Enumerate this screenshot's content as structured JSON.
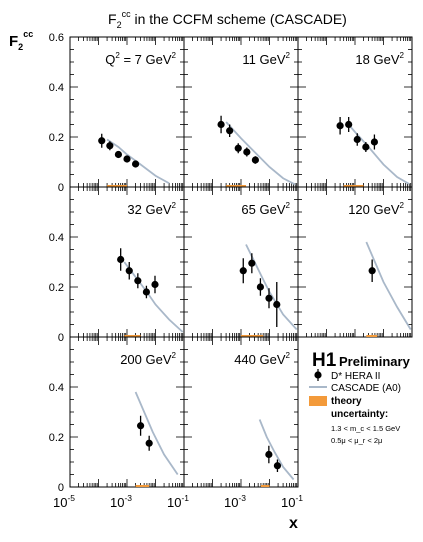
{
  "figure": {
    "title": "F2cc in the CCFM scheme (CASCADE)",
    "title_parts": {
      "symbol": "F",
      "sub": "2",
      "sup": "cc",
      "rest": " in the CCFM scheme (CASCADE)"
    },
    "ylabel_parts": {
      "symbol": "F",
      "sub": "2",
      "sup": "cc"
    },
    "xlabel": "x"
  },
  "legend": {
    "brand": "H1",
    "status": "Preliminary",
    "data_label": "D* HERA II",
    "model_label": "CASCADE (A0)",
    "band_label_1": "theory",
    "band_label_2": "uncertainty:",
    "note_1": "1.3 < m_c < 1.5 GeV",
    "note_2": "0.5μ < μ_r < 2μ",
    "colors": {
      "data": "#000000",
      "model": "#a9b8c9",
      "band": "#f39a3a"
    }
  },
  "chart_data": {
    "type": "scatter",
    "grid": false,
    "x_scale": "log",
    "xlim": [
      1e-05,
      0.1
    ],
    "ylim": [
      0,
      0.6
    ],
    "x_ticks": [
      "10^-5",
      "10^-3",
      "10^-1"
    ],
    "y_ticks": [
      "0",
      "0.2",
      "0.4",
      "0.6"
    ],
    "panels": [
      {
        "label": "Q^2 = 7 GeV^2",
        "points": [
          {
            "x": 0.00013,
            "y": 0.185,
            "err": 0.028
          },
          {
            "x": 0.00025,
            "y": 0.165,
            "err": 0.018
          },
          {
            "x": 0.0005,
            "y": 0.13,
            "err": 0.014
          },
          {
            "x": 0.001,
            "y": 0.112,
            "err": 0.012
          },
          {
            "x": 0.002,
            "y": 0.092,
            "err": 0.012
          }
        ],
        "model": [
          [
            0.0002,
            0.19
          ],
          [
            0.0005,
            0.16
          ],
          [
            0.001,
            0.13
          ],
          [
            0.003,
            0.09
          ],
          [
            0.01,
            0.045
          ],
          [
            0.03,
            0.015
          ]
        ],
        "band": [
          0.0002,
          0.001
        ]
      },
      {
        "label": "11 GeV^2",
        "points": [
          {
            "x": 0.0002,
            "y": 0.25,
            "err": 0.035
          },
          {
            "x": 0.0004,
            "y": 0.225,
            "err": 0.025
          },
          {
            "x": 0.0008,
            "y": 0.155,
            "err": 0.02
          },
          {
            "x": 0.0016,
            "y": 0.14,
            "err": 0.018
          },
          {
            "x": 0.0032,
            "y": 0.108,
            "err": 0.015
          }
        ],
        "model": [
          [
            0.0003,
            0.26
          ],
          [
            0.001,
            0.195
          ],
          [
            0.003,
            0.14
          ],
          [
            0.01,
            0.08
          ],
          [
            0.03,
            0.035
          ],
          [
            0.08,
            0.01
          ]
        ],
        "band": [
          0.0003,
          0.0015
        ]
      },
      {
        "label": "18 GeV^2",
        "points": [
          {
            "x": 0.0003,
            "y": 0.245,
            "err": 0.035
          },
          {
            "x": 0.0006,
            "y": 0.25,
            "err": 0.03
          },
          {
            "x": 0.0012,
            "y": 0.19,
            "err": 0.025
          },
          {
            "x": 0.0024,
            "y": 0.16,
            "err": 0.02
          },
          {
            "x": 0.0048,
            "y": 0.18,
            "err": 0.03
          }
        ],
        "model": [
          [
            0.0005,
            0.26
          ],
          [
            0.001,
            0.22
          ],
          [
            0.003,
            0.16
          ],
          [
            0.01,
            0.09
          ],
          [
            0.03,
            0.04
          ],
          [
            0.08,
            0.012
          ]
        ],
        "band": [
          0.0004,
          0.002
        ]
      },
      {
        "label": "32 GeV^2",
        "points": [
          {
            "x": 0.0006,
            "y": 0.31,
            "err": 0.045
          },
          {
            "x": 0.0012,
            "y": 0.265,
            "err": 0.035
          },
          {
            "x": 0.0024,
            "y": 0.225,
            "err": 0.03
          },
          {
            "x": 0.0048,
            "y": 0.18,
            "err": 0.025
          },
          {
            "x": 0.0096,
            "y": 0.21,
            "err": 0.035
          }
        ],
        "model": [
          [
            0.0008,
            0.3
          ],
          [
            0.002,
            0.24
          ],
          [
            0.005,
            0.18
          ],
          [
            0.01,
            0.13
          ],
          [
            0.03,
            0.07
          ],
          [
            0.09,
            0.02
          ]
        ],
        "band": [
          0.0008,
          0.003
        ]
      },
      {
        "label": "65 GeV^2",
        "points": [
          {
            "x": 0.0012,
            "y": 0.265,
            "err": 0.05
          },
          {
            "x": 0.0024,
            "y": 0.295,
            "err": 0.04
          },
          {
            "x": 0.0048,
            "y": 0.2,
            "err": 0.035
          },
          {
            "x": 0.0096,
            "y": 0.155,
            "err": 0.04
          },
          {
            "x": 0.018,
            "y": 0.13,
            "err": 0.09
          }
        ],
        "model": [
          [
            0.0015,
            0.37
          ],
          [
            0.003,
            0.3
          ],
          [
            0.006,
            0.23
          ],
          [
            0.01,
            0.18
          ],
          [
            0.03,
            0.09
          ],
          [
            0.09,
            0.03
          ]
        ],
        "band": [
          0.001,
          0.006
        ]
      },
      {
        "label": "120 GeV^2",
        "points": [
          {
            "x": 0.004,
            "y": 0.265,
            "err": 0.045
          }
        ],
        "model": [
          [
            0.0025,
            0.38
          ],
          [
            0.005,
            0.3
          ],
          [
            0.01,
            0.22
          ],
          [
            0.03,
            0.12
          ],
          [
            0.09,
            0.03
          ]
        ],
        "band": [
          0.0025,
          0.006
        ]
      },
      {
        "label": "200 GeV^2",
        "points": [
          {
            "x": 0.003,
            "y": 0.245,
            "err": 0.04
          },
          {
            "x": 0.006,
            "y": 0.175,
            "err": 0.03
          }
        ],
        "model": [
          [
            0.002,
            0.38
          ],
          [
            0.004,
            0.3
          ],
          [
            0.008,
            0.22
          ],
          [
            0.02,
            0.13
          ],
          [
            0.06,
            0.05
          ]
        ],
        "band": [
          0.002,
          0.006
        ]
      },
      {
        "label": "440 GeV^2",
        "points": [
          {
            "x": 0.0095,
            "y": 0.13,
            "err": 0.035
          },
          {
            "x": 0.019,
            "y": 0.085,
            "err": 0.025
          }
        ],
        "model": [
          [
            0.0045,
            0.27
          ],
          [
            0.008,
            0.2
          ],
          [
            0.015,
            0.14
          ],
          [
            0.03,
            0.08
          ],
          [
            0.07,
            0.03
          ]
        ],
        "band": [
          0.005,
          0.01
        ]
      }
    ]
  }
}
